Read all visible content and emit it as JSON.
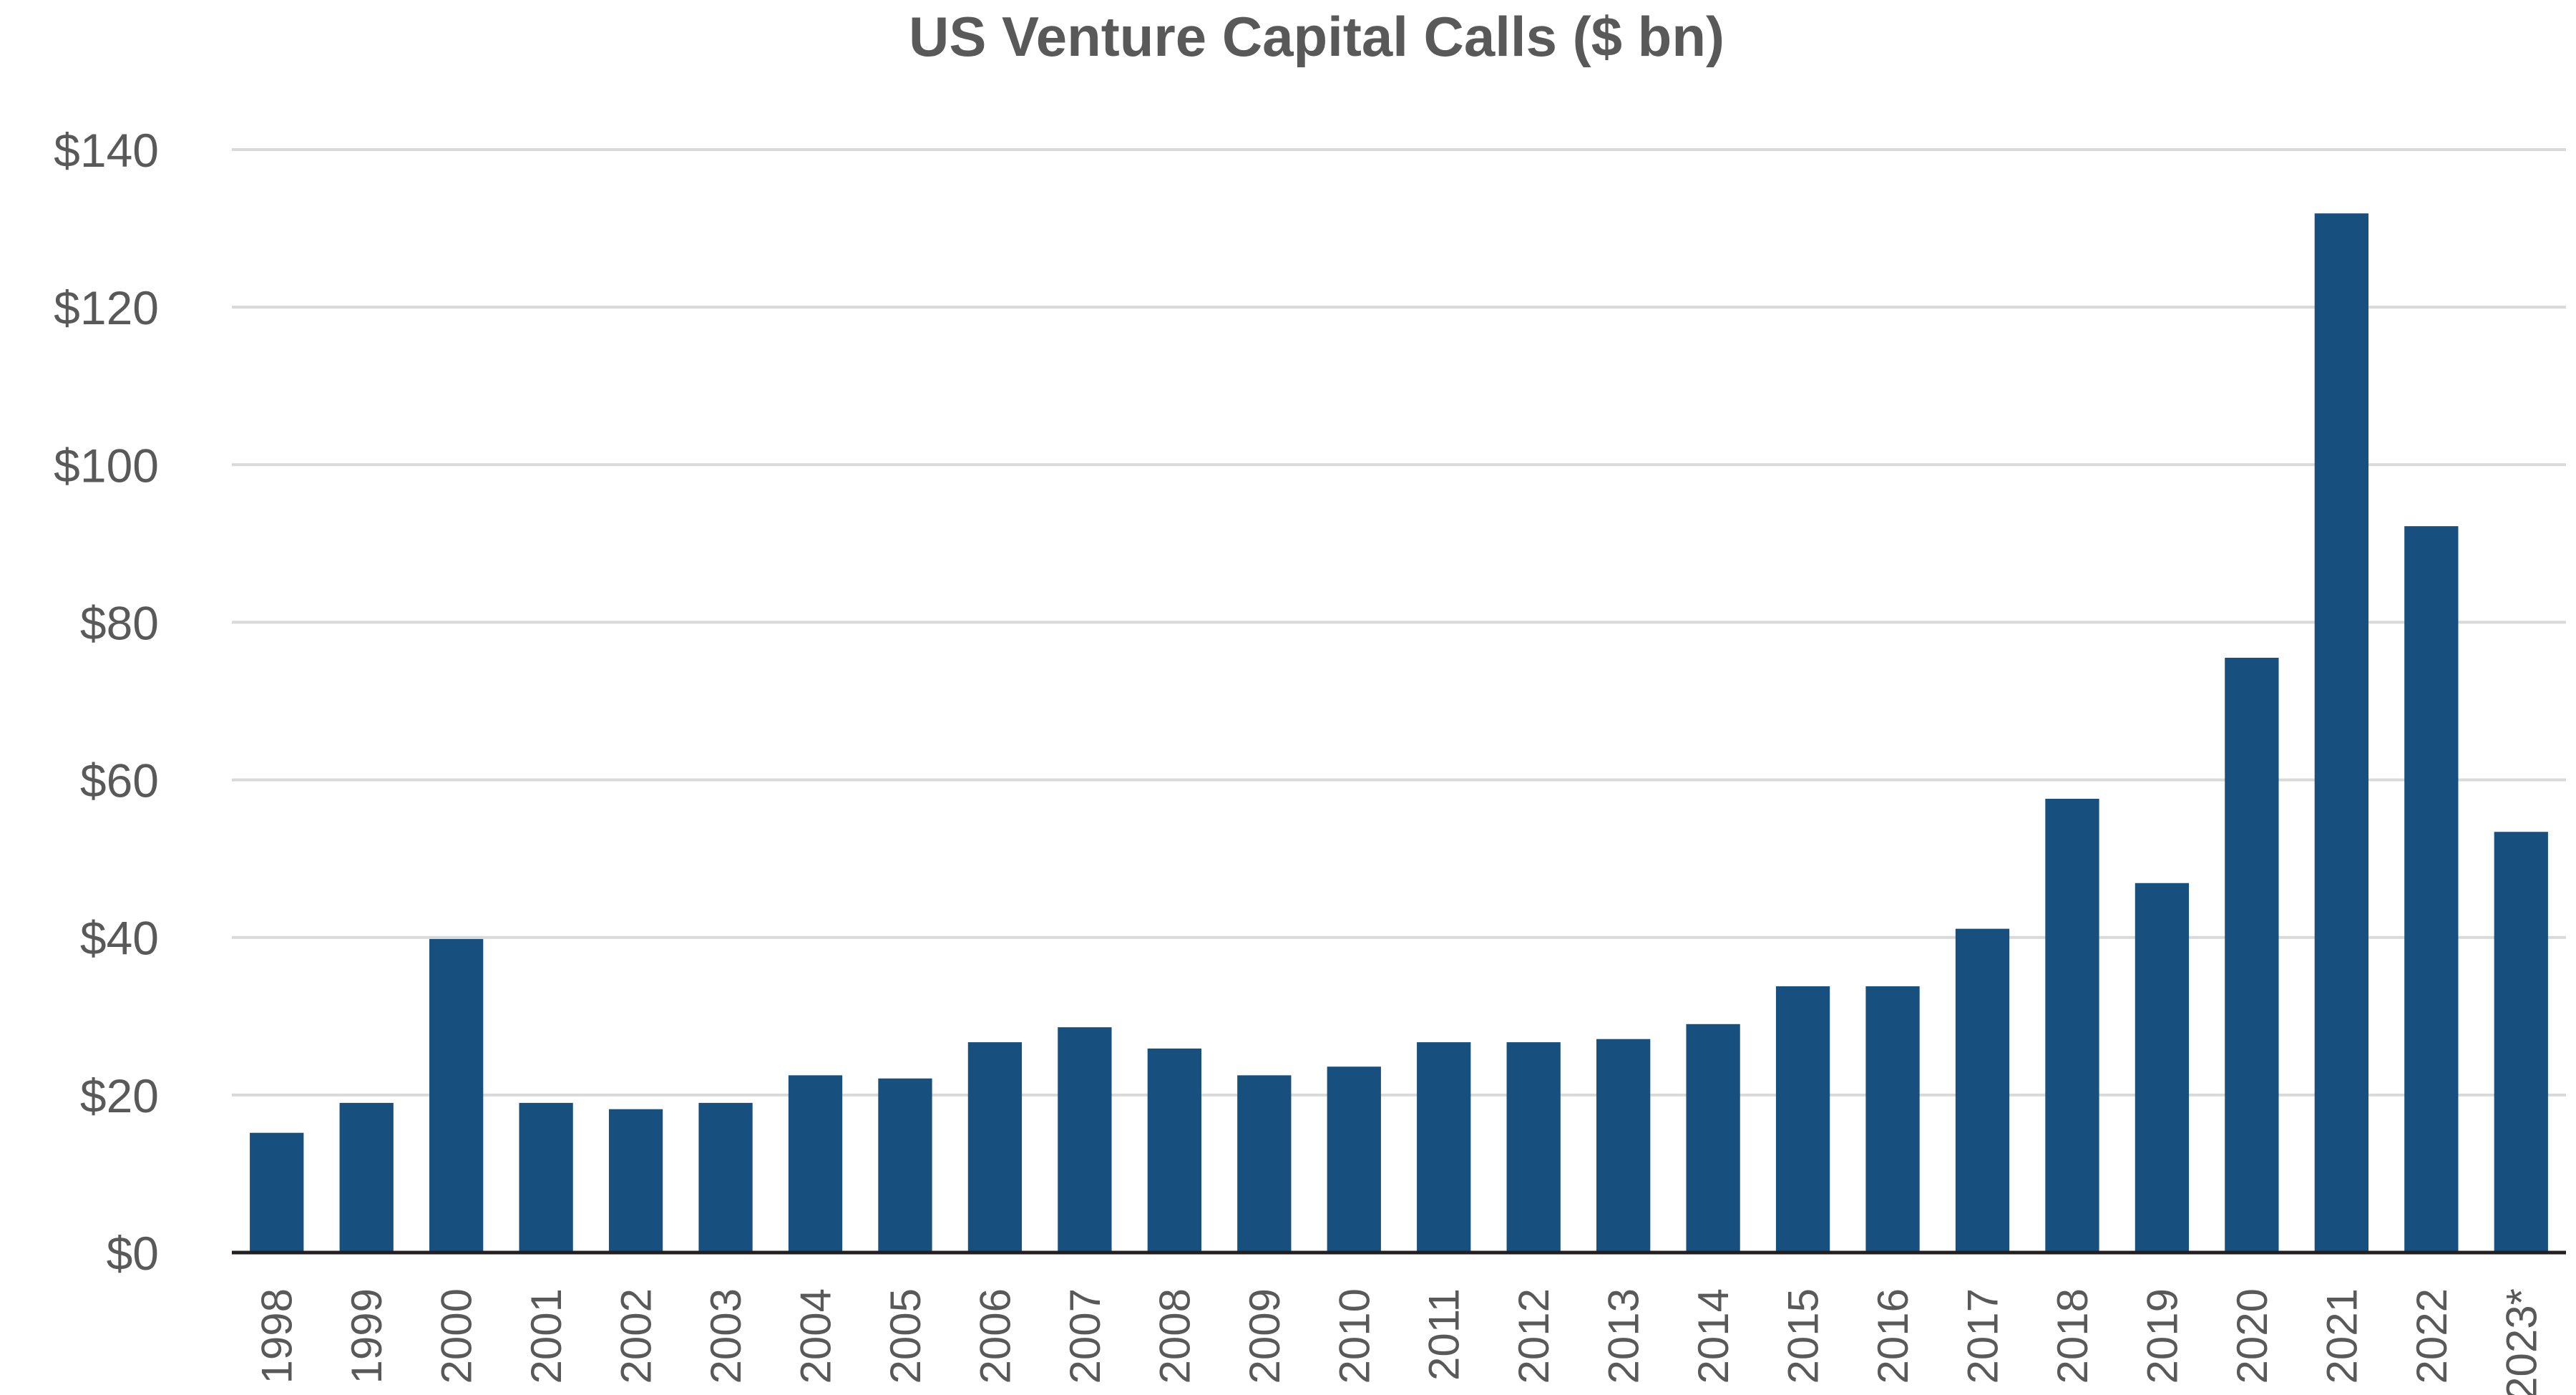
{
  "chart_data": {
    "type": "bar",
    "title": "US Venture Capital Calls ($ bn)",
    "xlabel": "",
    "ylabel": "",
    "categories": [
      "1998",
      "1999",
      "2000",
      "2001",
      "2002",
      "2003",
      "2004",
      "2005",
      "2006",
      "2007",
      "2008",
      "2009",
      "2010",
      "2011",
      "2012",
      "2013",
      "2014",
      "2015",
      "2016",
      "2017",
      "2018",
      "2019",
      "2020",
      "2021",
      "2022",
      "2023*"
    ],
    "values": [
      15.2,
      19.0,
      39.8,
      19.0,
      18.2,
      19.0,
      22.5,
      22.1,
      26.7,
      28.6,
      25.9,
      22.5,
      23.6,
      26.7,
      26.7,
      27.1,
      29.0,
      33.8,
      33.8,
      41.1,
      57.6,
      46.9,
      75.5,
      131.9,
      92.2,
      53.4
    ],
    "ylim": [
      0,
      140
    ],
    "yticks": [
      0,
      20,
      40,
      60,
      80,
      100,
      120,
      140
    ],
    "ytick_labels": [
      "$0",
      "$20",
      "$40",
      "$60",
      "$80",
      "$100",
      "$120",
      "$140"
    ],
    "grid": true,
    "legend": "none",
    "colors": {
      "bar": "#174f7e",
      "grid": "#d9d9d9",
      "axis": "#231f20",
      "text": "#595959"
    }
  }
}
